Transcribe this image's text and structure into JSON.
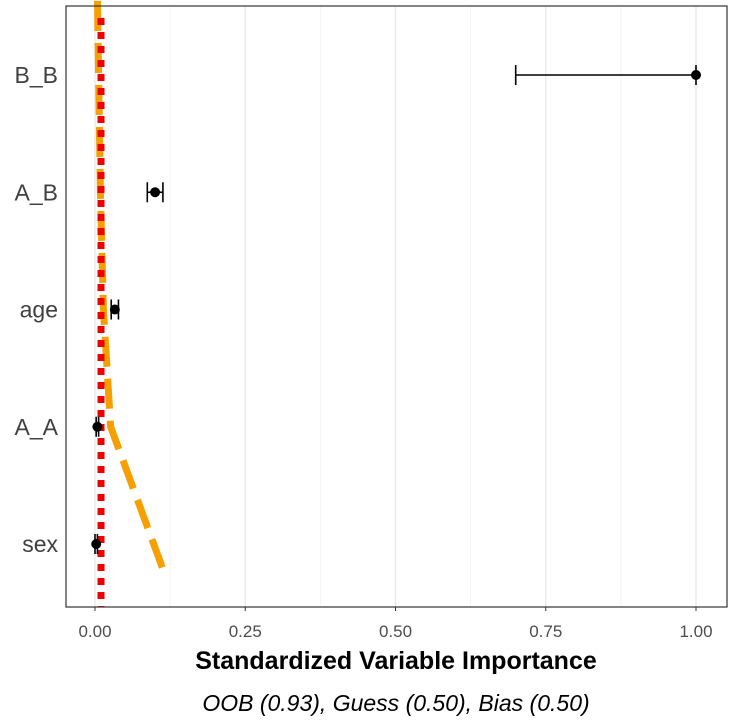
{
  "chart_data": {
    "type": "scatter",
    "xlabel": "Standardized Variable Importance",
    "subtitle": "OOB (0.93), Guess (0.50), Bias (0.50)",
    "xlim": [
      -0.1,
      1.1
    ],
    "x_ticks": [
      0.0,
      0.25,
      0.5,
      0.75,
      1.0
    ],
    "x_tick_labels": [
      "0.00",
      "0.25",
      "0.50",
      "0.75",
      "1.00"
    ],
    "grid": "vertical",
    "categories": [
      "B_B",
      "A_B",
      "age",
      "A_A",
      "sex"
    ],
    "points": [
      {
        "label": "B_B",
        "value": 1.0,
        "lower": 0.7,
        "upper": 1.0
      },
      {
        "label": "A_B",
        "value": 0.1,
        "lower": 0.087,
        "upper": 0.113
      },
      {
        "label": "age",
        "value": 0.033,
        "lower": 0.027,
        "upper": 0.039
      },
      {
        "label": "A_A",
        "value": 0.004,
        "lower": 0.002,
        "upper": 0.006
      },
      {
        "label": "sex",
        "value": 0.002,
        "lower": 0.0,
        "upper": 0.004
      }
    ],
    "reference_line": {
      "value": 0.01,
      "color": "#ee0000",
      "style": "dotted"
    },
    "trend_line": {
      "color": "#f5a000",
      "style": "dashed",
      "points": [
        {
          "x": 0.112,
          "y": 1.0
        },
        {
          "x": 0.026,
          "y": 1.0
        },
        {
          "x": 0.014,
          "y": 2.0
        },
        {
          "x": 0.009,
          "y": 3.0
        },
        {
          "x": 0.006,
          "y": 4.0
        },
        {
          "x": 0.003,
          "y": 5.0
        }
      ],
      "y_positions": [
        4.2,
        3.0,
        2.0,
        1.0,
        0.0,
        -1.0
      ]
    },
    "colors": {
      "point": "#000000",
      "grid": "#e6e6e6",
      "panel_border": "#333333"
    }
  }
}
